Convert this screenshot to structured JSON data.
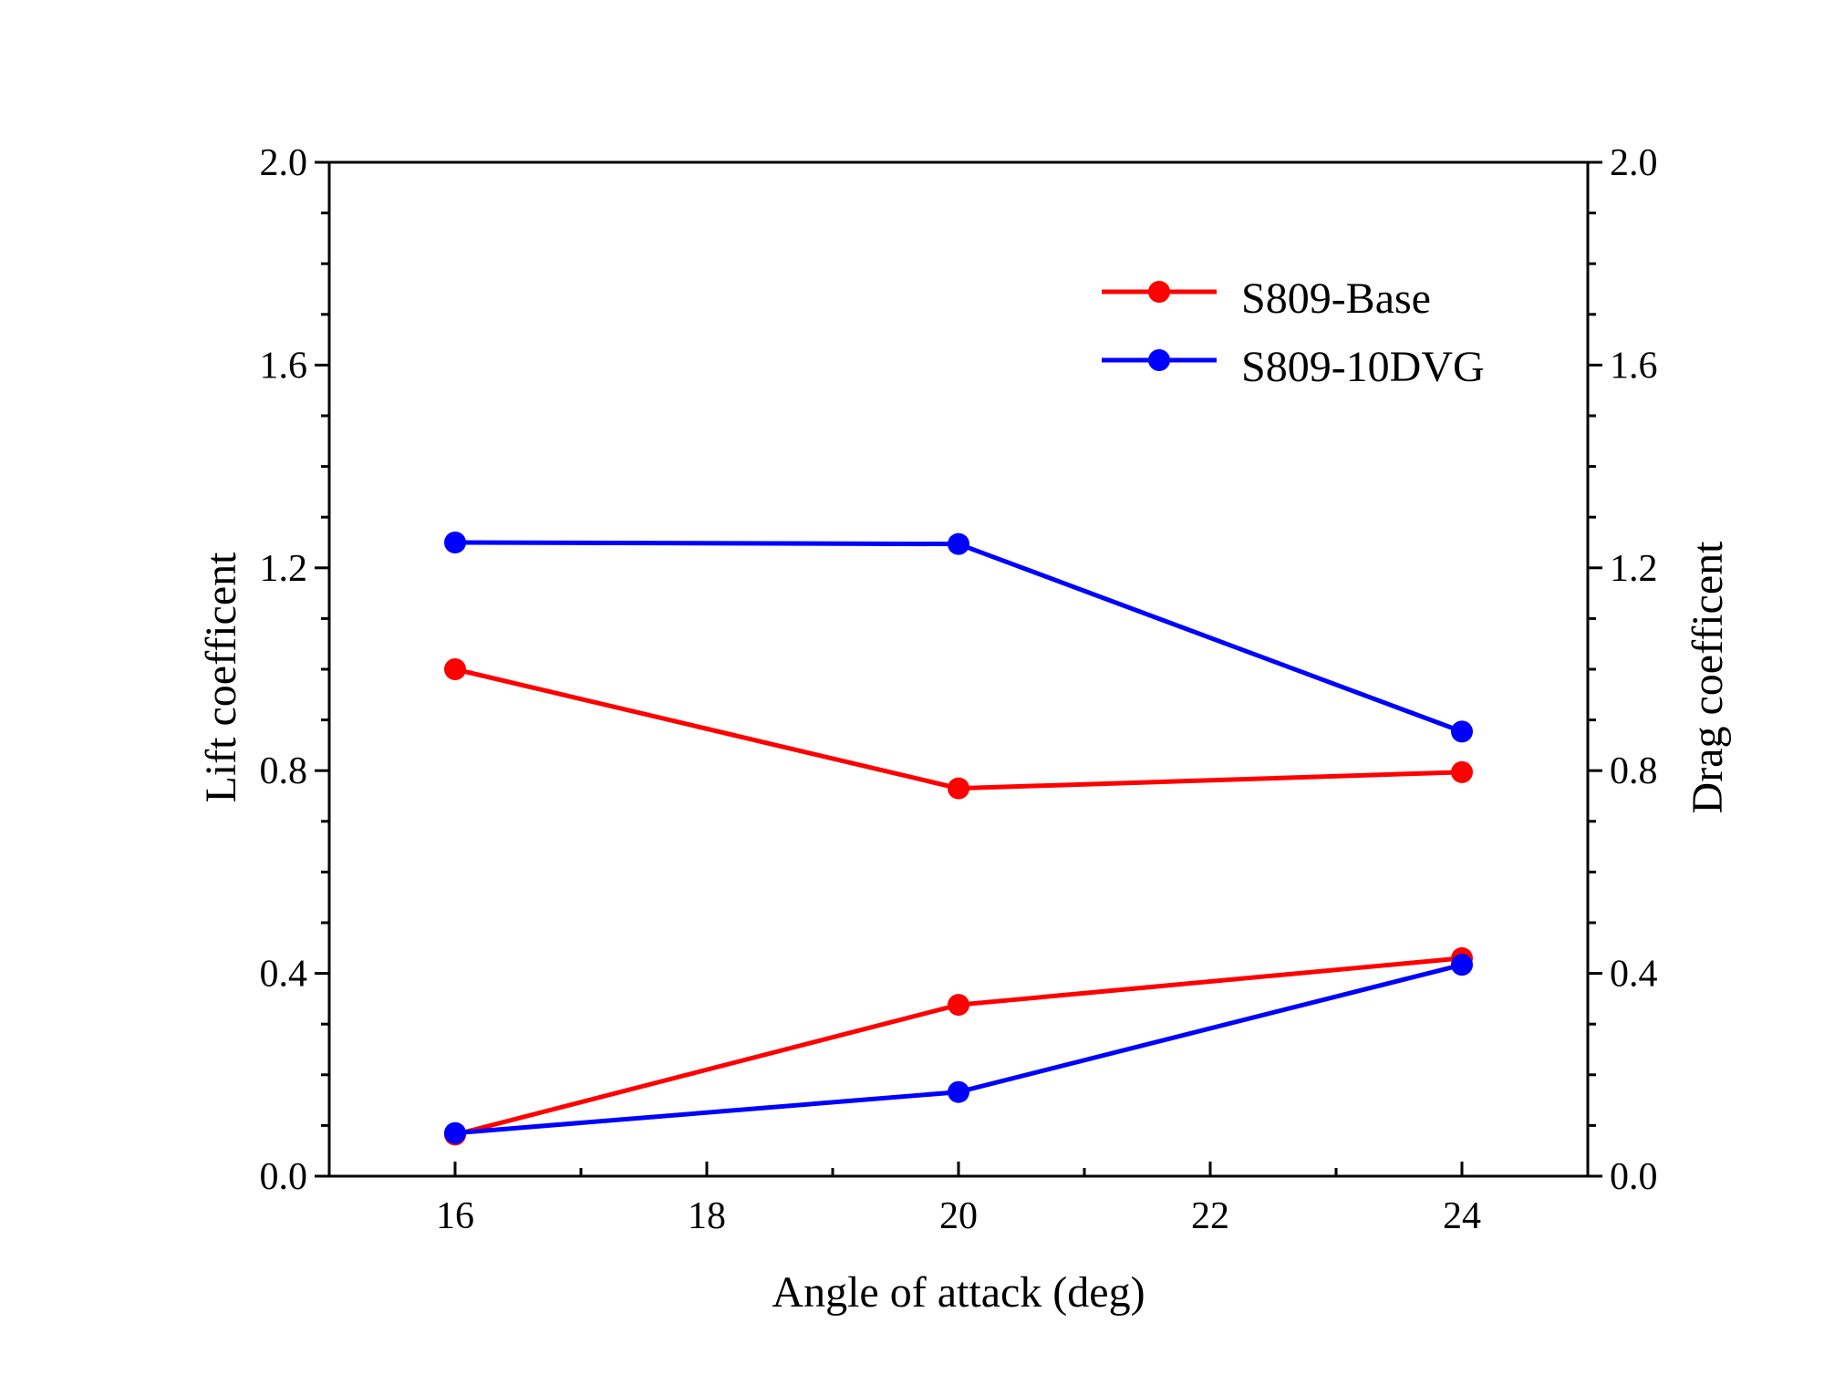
{
  "chart_data": {
    "type": "line",
    "xlabel": "Angle of attack (deg)",
    "ylabel": "Lift coefficent",
    "y2label": "Drag coefficent",
    "xlim": [
      15,
      25
    ],
    "ylim": [
      0,
      2.0
    ],
    "y2lim": [
      0,
      2.0
    ],
    "x_ticks": [
      16,
      18,
      20,
      22,
      24
    ],
    "x_tick_labels": [
      "16",
      "18",
      "20",
      "22",
      "24"
    ],
    "y_ticks": [
      0,
      0.4,
      0.8,
      1.2,
      1.6,
      2.0
    ],
    "y_tick_labels": [
      "0.0",
      "0.4",
      "0.8",
      "1.2",
      "1.6",
      "2.0"
    ],
    "legend_position": "top-right",
    "series": [
      {
        "name": "S809-Base",
        "legend": true,
        "axis": "left",
        "color": "#ff0000",
        "x": [
          16,
          20,
          24
        ],
        "values": [
          1.0,
          0.765,
          0.797
        ]
      },
      {
        "name": "S809-10DVG",
        "legend": true,
        "axis": "left",
        "color": "#0000ff",
        "x": [
          16,
          20,
          24
        ],
        "values": [
          1.25,
          1.247,
          0.877
        ]
      },
      {
        "name": "S809-Base",
        "legend": false,
        "axis": "right",
        "color": "#ff0000",
        "x": [
          16,
          20,
          24
        ],
        "values": [
          0.082,
          0.338,
          0.43
        ]
      },
      {
        "name": "S809-10DVG",
        "legend": false,
        "axis": "right",
        "color": "#0000ff",
        "x": [
          16,
          20,
          24
        ],
        "values": [
          0.085,
          0.166,
          0.417
        ]
      }
    ]
  }
}
